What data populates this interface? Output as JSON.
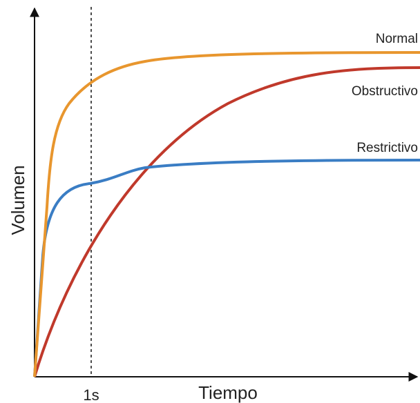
{
  "axes": {
    "y_label": "Volumen",
    "x_label": "Tiempo",
    "x_marker": "1s"
  },
  "curves": [
    {
      "label": "Normal"
    },
    {
      "label": "Obstructivo"
    },
    {
      "label": "Restrictivo"
    }
  ]
}
